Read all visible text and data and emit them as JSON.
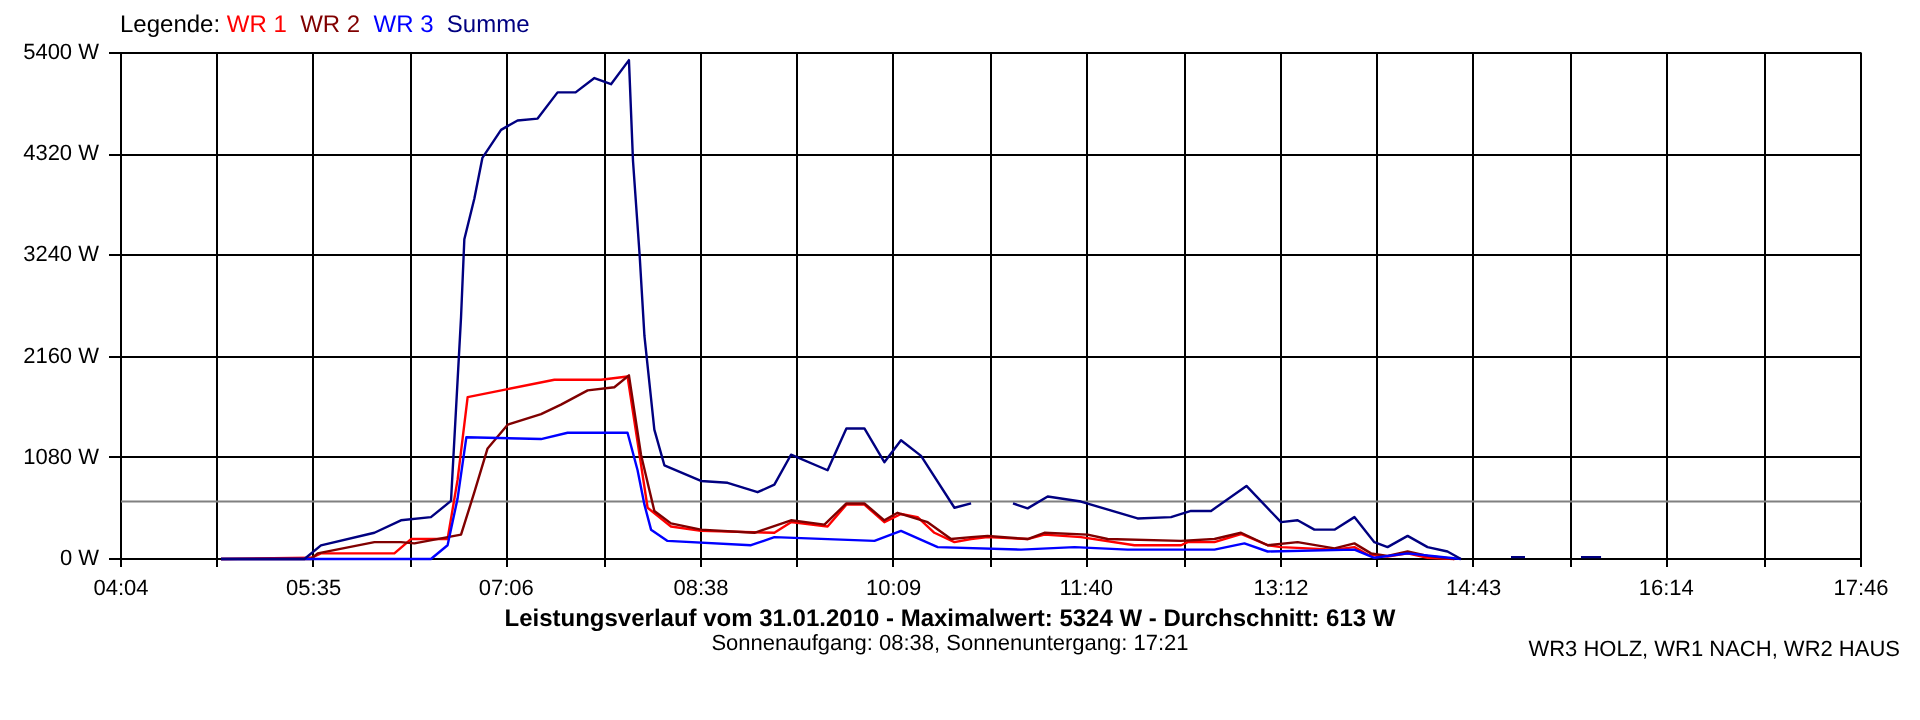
{
  "chart_data": {
    "type": "line",
    "title": "Leistungsverlauf vom 31.01.2010 - Maximalwert: 5324 W - Durchschnitt: 613 W",
    "subtitle": "Sonnenaufgang: 08:38, Sonnenuntergang: 17:21",
    "annotations": [
      "WR3 HOLZ, WR1 NACH, WR2 HAUS"
    ],
    "legend_title": "Legende:",
    "legend": "top left",
    "grid": true,
    "xlim": [
      4.0667,
      17.7667
    ],
    "xticks": [
      {
        "value": 4.0667,
        "label": "04:04"
      },
      {
        "value": 4.8278,
        "label": null
      },
      {
        "value": 5.5833,
        "label": "05:35"
      },
      {
        "value": 6.35,
        "label": null
      },
      {
        "value": 7.1,
        "label": "07:06"
      },
      {
        "value": 7.8722,
        "label": null
      },
      {
        "value": 8.6333,
        "label": "08:38"
      },
      {
        "value": 9.3944,
        "label": null
      },
      {
        "value": 10.15,
        "label": "10:09"
      },
      {
        "value": 10.9167,
        "label": null
      },
      {
        "value": 11.6667,
        "label": "11:40"
      },
      {
        "value": 12.4389,
        "label": null
      },
      {
        "value": 13.2,
        "label": "13:12"
      },
      {
        "value": 13.9611,
        "label": null
      },
      {
        "value": 14.7167,
        "label": "14:43"
      },
      {
        "value": 15.4833,
        "label": null
      },
      {
        "value": 16.2333,
        "label": "16:14"
      },
      {
        "value": 17.0056,
        "label": null
      },
      {
        "value": 17.7667,
        "label": "17:46"
      }
    ],
    "ylim": [
      0,
      5400
    ],
    "yticks": [
      {
        "value": 0,
        "label": "0 W"
      },
      {
        "value": 1080,
        "label": "1080 W"
      },
      {
        "value": 2160,
        "label": "2160 W"
      },
      {
        "value": 3240,
        "label": "3240 W"
      },
      {
        "value": 4320,
        "label": "4320 W"
      },
      {
        "value": 5400,
        "label": "5400 W"
      }
    ],
    "ref_lines": [
      {
        "axis": "y",
        "value": 613,
        "color": "#808080"
      }
    ],
    "series": [
      {
        "name": "WR 1",
        "color": "#ff0000",
        "x": [
          4.854,
          5.563,
          5.641,
          6.219,
          6.35,
          6.638,
          6.717,
          6.796,
          7.111,
          7.479,
          7.846,
          8.055,
          8.134,
          8.213,
          8.397,
          8.633,
          9.211,
          9.342,
          9.63,
          9.778,
          9.92,
          10.077,
          10.208,
          10.339,
          10.471,
          10.629,
          10.76,
          10.89,
          11.205,
          11.337,
          11.625,
          12.046,
          12.413,
          12.465,
          12.676,
          12.885,
          13.095,
          13.2,
          13.621,
          13.778,
          13.882,
          14.039,
          14.197,
          14.354,
          14.565
        ],
        "values": [
          0,
          13,
          60,
          60,
          213,
          213,
          847,
          1727,
          1813,
          1913,
          1913,
          1947,
          1247,
          547,
          347,
          300,
          280,
          393,
          347,
          580,
          580,
          393,
          480,
          447,
          280,
          180,
          213,
          233,
          213,
          260,
          233,
          147,
          147,
          180,
          180,
          267,
          147,
          127,
          100,
          127,
          47,
          27,
          60,
          13,
          0
        ]
      },
      {
        "name": "WR 2",
        "color": "#800000",
        "x": [
          4.854,
          5.563,
          5.615,
          6.062,
          6.271,
          6.377,
          6.744,
          6.849,
          6.953,
          7.111,
          7.374,
          7.531,
          7.741,
          7.951,
          8.066,
          8.161,
          8.266,
          8.397,
          8.633,
          9.054,
          9.342,
          9.605,
          9.778,
          9.92,
          10.077,
          10.181,
          10.418,
          10.602,
          10.76,
          10.89,
          11.205,
          11.337,
          11.677,
          11.835,
          12.413,
          12.676,
          12.885,
          13.095,
          13.331,
          13.621,
          13.778,
          13.909,
          14.039,
          14.197,
          14.354,
          14.565
        ],
        "values": [
          0,
          0,
          60,
          180,
          180,
          167,
          260,
          713,
          1180,
          1433,
          1547,
          1647,
          1800,
          1833,
          1960,
          1113,
          513,
          380,
          313,
          280,
          413,
          367,
          593,
          593,
          413,
          493,
          393,
          213,
          233,
          247,
          213,
          280,
          260,
          213,
          193,
          213,
          280,
          147,
          180,
          113,
          167,
          60,
          33,
          80,
          33,
          0
        ]
      },
      {
        "name": "WR 3",
        "color": "#0000ff",
        "x": [
          4.854,
          6.507,
          6.638,
          6.717,
          6.786,
          7.374,
          7.583,
          8.055,
          8.134,
          8.188,
          8.24,
          8.37,
          9.027,
          9.211,
          9.999,
          10.208,
          10.497,
          11.153,
          11.574,
          11.992,
          12.676,
          12.912,
          13.095,
          13.778,
          13.935,
          14.197,
          14.617
        ],
        "values": [
          0,
          0,
          147,
          647,
          1300,
          1280,
          1347,
          1347,
          947,
          580,
          313,
          193,
          147,
          233,
          193,
          300,
          127,
          100,
          127,
          100,
          100,
          167,
          80,
          100,
          13,
          60,
          0
        ]
      },
      {
        "name": "Summe",
        "color": "#000080",
        "x": [
          4.854,
          5.511,
          5.641,
          6.062,
          6.271,
          6.507,
          6.665,
          6.744,
          6.77,
          6.849,
          6.912,
          7.059,
          7.189,
          7.347,
          7.504,
          7.646,
          7.794,
          7.925,
          8.066,
          8.098,
          8.15,
          8.188,
          8.266,
          8.345,
          8.633,
          8.843,
          9.079,
          9.211,
          9.342,
          9.63,
          9.778,
          9.92,
          10.077,
          10.208,
          10.366,
          10.629,
          10.76,
          10.9,
          11.09,
          11.205,
          11.363,
          11.625,
          12.071,
          12.334,
          12.491,
          12.649,
          12.928,
          13.2,
          13.331,
          13.463,
          13.621,
          13.778,
          13.935,
          14.039,
          14.197,
          14.354,
          14.511,
          14.617,
          14.8,
          15.011,
          15.121,
          15.3,
          15.562,
          15.72
        ],
        "values": [
          0,
          0,
          146,
          280,
          413,
          447,
          620,
          2580,
          3413,
          3847,
          4280,
          4580,
          4680,
          4700,
          4980,
          4980,
          5133,
          5067,
          5324,
          4247,
          3247,
          2380,
          1380,
          1000,
          833,
          813,
          713,
          793,
          1113,
          947,
          1393,
          1393,
          1033,
          1267,
          1100,
          547,
          593,
          null,
          593,
          540,
          667,
          613,
          433,
          447,
          513,
          513,
          780,
          393,
          413,
          313,
          313,
          447,
          180,
          127,
          247,
          127,
          80,
          0,
          null,
          20,
          20,
          null,
          20,
          20
        ]
      }
    ]
  }
}
